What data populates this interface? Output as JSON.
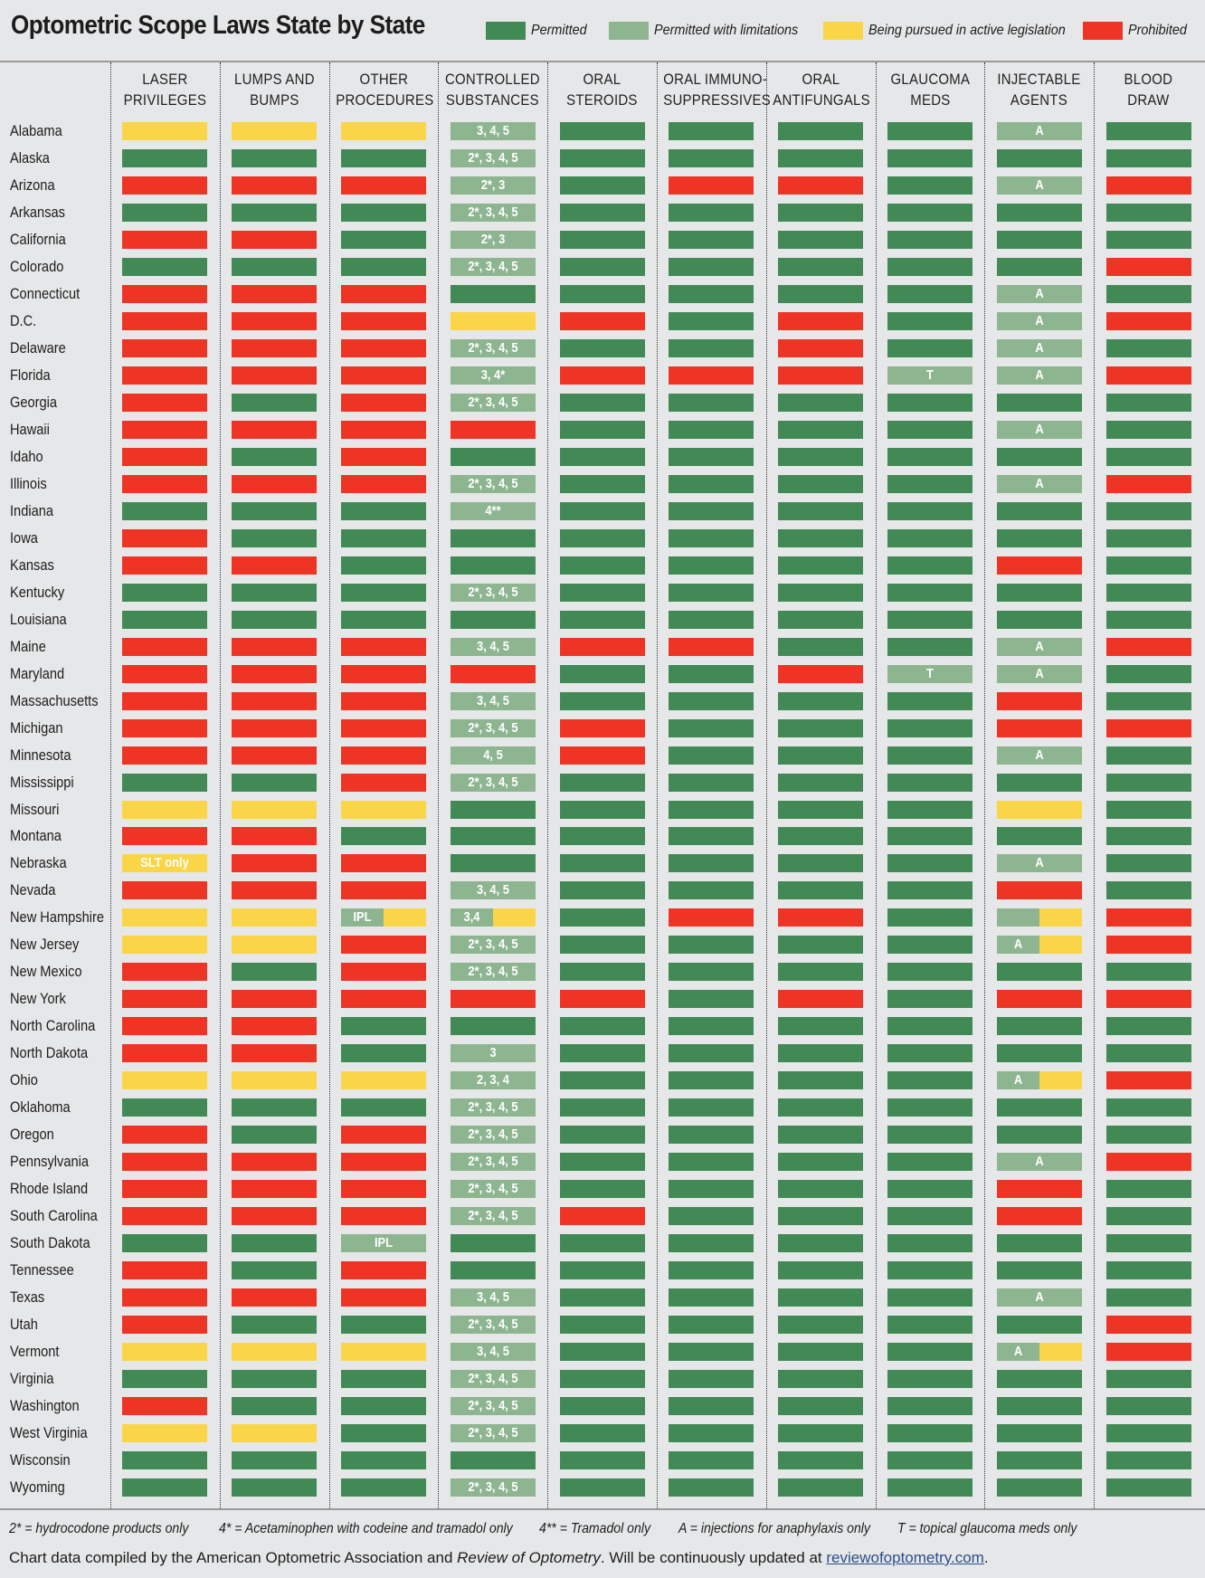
{
  "title": "Optometric Scope Laws State by State",
  "legend": [
    {
      "key": "P",
      "label": "Permitted",
      "color": "#428a55"
    },
    {
      "key": "L",
      "label": "Permitted with limitations",
      "color": "#8db590"
    },
    {
      "key": "Y",
      "label": "Being pursued in active legislation",
      "color": "#fbd548"
    },
    {
      "key": "R",
      "label": "Prohibited",
      "color": "#ee3424"
    }
  ],
  "footnotes": [
    "2* = hydrocodone products only",
    "4* = Acetaminophen with codeine and tramadol only",
    "4** = Tramadol only",
    "A = injections for anaphylaxis only",
    "T = topical glaucoma meds only"
  ],
  "credit": {
    "pre": "Chart data compiled by the American Optometric Association and ",
    "italic": "Review of Optometry",
    "mid": ". Will be continuously updated at ",
    "link": "reviewofoptometry.com",
    "post": "."
  },
  "chart_data": {
    "type": "table",
    "columns": [
      [
        "LASER",
        "PRIVILEGES"
      ],
      [
        "LUMPS AND",
        "BUMPS"
      ],
      [
        "OTHER",
        "PROCEDURES"
      ],
      [
        "CONTROLLED",
        "SUBSTANCES"
      ],
      [
        "ORAL",
        "STEROIDS"
      ],
      [
        "ORAL IMMUNO-",
        "SUPPRESSIVES"
      ],
      [
        "ORAL",
        "ANTIFUNGALS"
      ],
      [
        "GLAUCOMA",
        "MEDS"
      ],
      [
        "INJECTABLE",
        "AGENTS"
      ],
      [
        "BLOOD",
        "DRAW"
      ]
    ],
    "rows": [
      {
        "state": "Alabama",
        "cells": [
          "Y",
          "Y",
          "Y",
          "L:3, 4, 5",
          "P",
          "P",
          "P",
          "P",
          "L:A",
          "P"
        ]
      },
      {
        "state": "Alaska",
        "cells": [
          "P",
          "P",
          "P",
          "L:2*, 3, 4, 5",
          "P",
          "P",
          "P",
          "P",
          "P",
          "P"
        ]
      },
      {
        "state": "Arizona",
        "cells": [
          "R",
          "R",
          "R",
          "L:2*, 3",
          "P",
          "R",
          "R",
          "P",
          "L:A",
          "R"
        ]
      },
      {
        "state": "Arkansas",
        "cells": [
          "P",
          "P",
          "P",
          "L:2*, 3, 4, 5",
          "P",
          "P",
          "P",
          "P",
          "P",
          "P"
        ]
      },
      {
        "state": "California",
        "cells": [
          "R",
          "R",
          "P",
          "L:2*, 3",
          "P",
          "P",
          "P",
          "P",
          "P",
          "P"
        ]
      },
      {
        "state": "Colorado",
        "cells": [
          "P",
          "P",
          "P",
          "L:2*, 3, 4, 5",
          "P",
          "P",
          "P",
          "P",
          "P",
          "R"
        ]
      },
      {
        "state": "Connecticut",
        "cells": [
          "R",
          "R",
          "R",
          "P",
          "P",
          "P",
          "P",
          "P",
          "L:A",
          "P"
        ]
      },
      {
        "state": "D.C.",
        "cells": [
          "R",
          "R",
          "R",
          "Y",
          "R",
          "P",
          "R",
          "P",
          "L:A",
          "R"
        ]
      },
      {
        "state": "Delaware",
        "cells": [
          "R",
          "R",
          "R",
          "L:2*, 3, 4, 5",
          "P",
          "P",
          "R",
          "P",
          "L:A",
          "P"
        ]
      },
      {
        "state": "Florida",
        "cells": [
          "R",
          "R",
          "R",
          "L:3, 4*",
          "R",
          "R",
          "R",
          "L:T",
          "L:A",
          "R"
        ]
      },
      {
        "state": "Georgia",
        "cells": [
          "R",
          "P",
          "R",
          "L:2*, 3, 4, 5",
          "P",
          "P",
          "P",
          "P",
          "P",
          "P"
        ]
      },
      {
        "state": "Hawaii",
        "cells": [
          "R",
          "R",
          "R",
          "R",
          "P",
          "P",
          "P",
          "P",
          "L:A",
          "P"
        ]
      },
      {
        "state": "Idaho",
        "cells": [
          "R",
          "P",
          "R",
          "P",
          "P",
          "P",
          "P",
          "P",
          "P",
          "P"
        ]
      },
      {
        "state": "Illinois",
        "cells": [
          "R",
          "R",
          "R",
          "L:2*, 3, 4, 5",
          "P",
          "P",
          "P",
          "P",
          "L:A",
          "R"
        ]
      },
      {
        "state": "Indiana",
        "cells": [
          "P",
          "P",
          "P",
          "L:4**",
          "P",
          "P",
          "P",
          "P",
          "P",
          "P"
        ]
      },
      {
        "state": "Iowa",
        "cells": [
          "R",
          "P",
          "P",
          "P",
          "P",
          "P",
          "P",
          "P",
          "P",
          "P"
        ]
      },
      {
        "state": "Kansas",
        "cells": [
          "R",
          "R",
          "P",
          "P",
          "P",
          "P",
          "P",
          "P",
          "R",
          "P"
        ]
      },
      {
        "state": "Kentucky",
        "cells": [
          "P",
          "P",
          "P",
          "L:2*, 3, 4, 5",
          "P",
          "P",
          "P",
          "P",
          "P",
          "P"
        ]
      },
      {
        "state": "Louisiana",
        "cells": [
          "P",
          "P",
          "P",
          "P",
          "P",
          "P",
          "P",
          "P",
          "P",
          "P"
        ]
      },
      {
        "state": "Maine",
        "cells": [
          "R",
          "R",
          "R",
          "L:3, 4, 5",
          "R",
          "R",
          "P",
          "P",
          "L:A",
          "R"
        ]
      },
      {
        "state": "Maryland",
        "cells": [
          "R",
          "R",
          "R",
          "R",
          "P",
          "P",
          "R",
          "L:T",
          "L:A",
          "P"
        ]
      },
      {
        "state": "Massachusetts",
        "cells": [
          "R",
          "R",
          "R",
          "L:3, 4, 5",
          "P",
          "P",
          "P",
          "P",
          "R",
          "P"
        ]
      },
      {
        "state": "Michigan",
        "cells": [
          "R",
          "R",
          "R",
          "L:2*, 3, 4, 5",
          "R",
          "P",
          "P",
          "P",
          "R",
          "R"
        ]
      },
      {
        "state": "Minnesota",
        "cells": [
          "R",
          "R",
          "R",
          "L:4, 5",
          "R",
          "P",
          "P",
          "P",
          "L:A",
          "P"
        ]
      },
      {
        "state": "Mississippi",
        "cells": [
          "P",
          "P",
          "R",
          "L:2*, 3, 4, 5",
          "P",
          "P",
          "P",
          "P",
          "P",
          "P"
        ]
      },
      {
        "state": "Missouri",
        "cells": [
          "Y",
          "Y",
          "Y",
          "P",
          "P",
          "P",
          "P",
          "P",
          "Y",
          "P"
        ]
      },
      {
        "state": "Montana",
        "cells": [
          "R",
          "R",
          "P",
          "P",
          "P",
          "P",
          "P",
          "P",
          "P",
          "P"
        ]
      },
      {
        "state": "Nebraska",
        "cells": [
          "Y:SLT only",
          "R",
          "R",
          "P",
          "P",
          "P",
          "P",
          "P",
          "L:A",
          "P"
        ]
      },
      {
        "state": "Nevada",
        "cells": [
          "R",
          "R",
          "R",
          "L:3, 4, 5",
          "P",
          "P",
          "P",
          "P",
          "R",
          "P"
        ]
      },
      {
        "state": "New Hampshire",
        "cells": [
          "Y",
          "Y",
          "LY:IPL",
          "LY:3,4",
          "P",
          "R",
          "R",
          "P",
          "LY",
          "R"
        ]
      },
      {
        "state": "New Jersey",
        "cells": [
          "Y",
          "Y",
          "R",
          "L:2*, 3, 4, 5",
          "P",
          "P",
          "P",
          "P",
          "LY:A",
          "R"
        ]
      },
      {
        "state": "New Mexico",
        "cells": [
          "R",
          "P",
          "R",
          "L:2*, 3, 4, 5",
          "P",
          "P",
          "P",
          "P",
          "P",
          "P"
        ]
      },
      {
        "state": "New York",
        "cells": [
          "R",
          "R",
          "R",
          "R",
          "R",
          "P",
          "R",
          "P",
          "R",
          "R"
        ]
      },
      {
        "state": "North Carolina",
        "cells": [
          "R",
          "R",
          "P",
          "P",
          "P",
          "P",
          "P",
          "P",
          "P",
          "P"
        ]
      },
      {
        "state": "North Dakota",
        "cells": [
          "R",
          "R",
          "P",
          "L:3",
          "P",
          "P",
          "P",
          "P",
          "P",
          "P"
        ]
      },
      {
        "state": "Ohio",
        "cells": [
          "Y",
          "Y",
          "Y",
          "L:2, 3, 4",
          "P",
          "P",
          "P",
          "P",
          "LY:A",
          "R"
        ]
      },
      {
        "state": "Oklahoma",
        "cells": [
          "P",
          "P",
          "P",
          "L:2*, 3, 4, 5",
          "P",
          "P",
          "P",
          "P",
          "P",
          "P"
        ]
      },
      {
        "state": "Oregon",
        "cells": [
          "R",
          "P",
          "R",
          "L:2*, 3, 4, 5",
          "P",
          "P",
          "P",
          "P",
          "P",
          "P"
        ]
      },
      {
        "state": "Pennsylvania",
        "cells": [
          "R",
          "R",
          "R",
          "L:2*, 3, 4, 5",
          "P",
          "P",
          "P",
          "P",
          "L:A",
          "R"
        ]
      },
      {
        "state": "Rhode Island",
        "cells": [
          "R",
          "R",
          "R",
          "L:2*, 3, 4, 5",
          "P",
          "P",
          "P",
          "P",
          "R",
          "P"
        ]
      },
      {
        "state": "South Carolina",
        "cells": [
          "R",
          "R",
          "R",
          "L:2*, 3, 4, 5",
          "R",
          "P",
          "P",
          "P",
          "R",
          "P"
        ]
      },
      {
        "state": "South Dakota",
        "cells": [
          "P",
          "P",
          "L:IPL",
          "P",
          "P",
          "P",
          "P",
          "P",
          "P",
          "P"
        ]
      },
      {
        "state": "Tennessee",
        "cells": [
          "R",
          "P",
          "R",
          "P",
          "P",
          "P",
          "P",
          "P",
          "P",
          "P"
        ]
      },
      {
        "state": "Texas",
        "cells": [
          "R",
          "R",
          "R",
          "L:3, 4, 5",
          "P",
          "P",
          "P",
          "P",
          "L:A",
          "P"
        ]
      },
      {
        "state": "Utah",
        "cells": [
          "R",
          "P",
          "P",
          "L:2*, 3, 4, 5",
          "P",
          "P",
          "P",
          "P",
          "P",
          "R"
        ]
      },
      {
        "state": "Vermont",
        "cells": [
          "Y",
          "Y",
          "Y",
          "L:3, 4, 5",
          "P",
          "P",
          "P",
          "P",
          "LY:A",
          "R"
        ]
      },
      {
        "state": "Virginia",
        "cells": [
          "P",
          "P",
          "P",
          "L:2*, 3, 4, 5",
          "P",
          "P",
          "P",
          "P",
          "P",
          "P"
        ]
      },
      {
        "state": "Washington",
        "cells": [
          "R",
          "P",
          "P",
          "L:2*, 3, 4, 5",
          "P",
          "P",
          "P",
          "P",
          "P",
          "P"
        ]
      },
      {
        "state": "West Virginia",
        "cells": [
          "Y",
          "Y",
          "P",
          "L:2*, 3, 4, 5",
          "P",
          "P",
          "P",
          "P",
          "P",
          "P"
        ]
      },
      {
        "state": "Wisconsin",
        "cells": [
          "P",
          "P",
          "P",
          "P",
          "P",
          "P",
          "P",
          "P",
          "P",
          "P"
        ]
      },
      {
        "state": "Wyoming",
        "cells": [
          "P",
          "P",
          "P",
          "L:2*, 3, 4, 5",
          "P",
          "P",
          "P",
          "P",
          "P",
          "P"
        ]
      }
    ]
  }
}
